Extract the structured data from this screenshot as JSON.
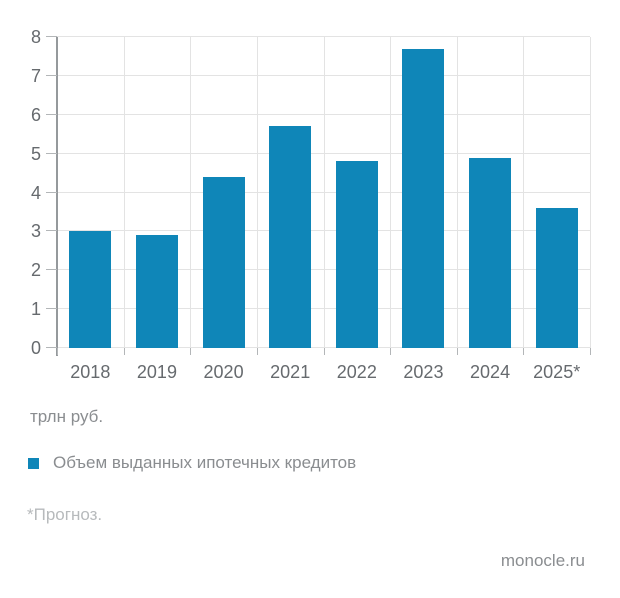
{
  "chart_data": {
    "type": "bar",
    "categories": [
      "2018",
      "2019",
      "2020",
      "2021",
      "2022",
      "2023",
      "2024",
      "2025*"
    ],
    "values": [
      3.0,
      2.9,
      4.4,
      5.7,
      4.8,
      7.7,
      4.9,
      3.6
    ],
    "series_name": "Объем выданных ипотечных кредитов",
    "title": "",
    "xlabel": "",
    "ylabel": "трлн руб.",
    "ylim": [
      0,
      8
    ],
    "ytick_step": 1,
    "grid": true,
    "legend_position": "bottom-left",
    "bar_color": "#0f86b8"
  },
  "labels": {
    "unit": "трлн руб.",
    "legend": "Объем выданных ипотечных кредитов",
    "footnote": "*Прогноз.",
    "source": "monocle.ru"
  },
  "colors": {
    "bar": "#0f86b8",
    "axis": "#95999c",
    "tick": "#b3b6b8",
    "grid": "#e3e3e3",
    "tick_label": "#666a6e",
    "text": "#8a8d90",
    "footnote": "#b7babc"
  }
}
